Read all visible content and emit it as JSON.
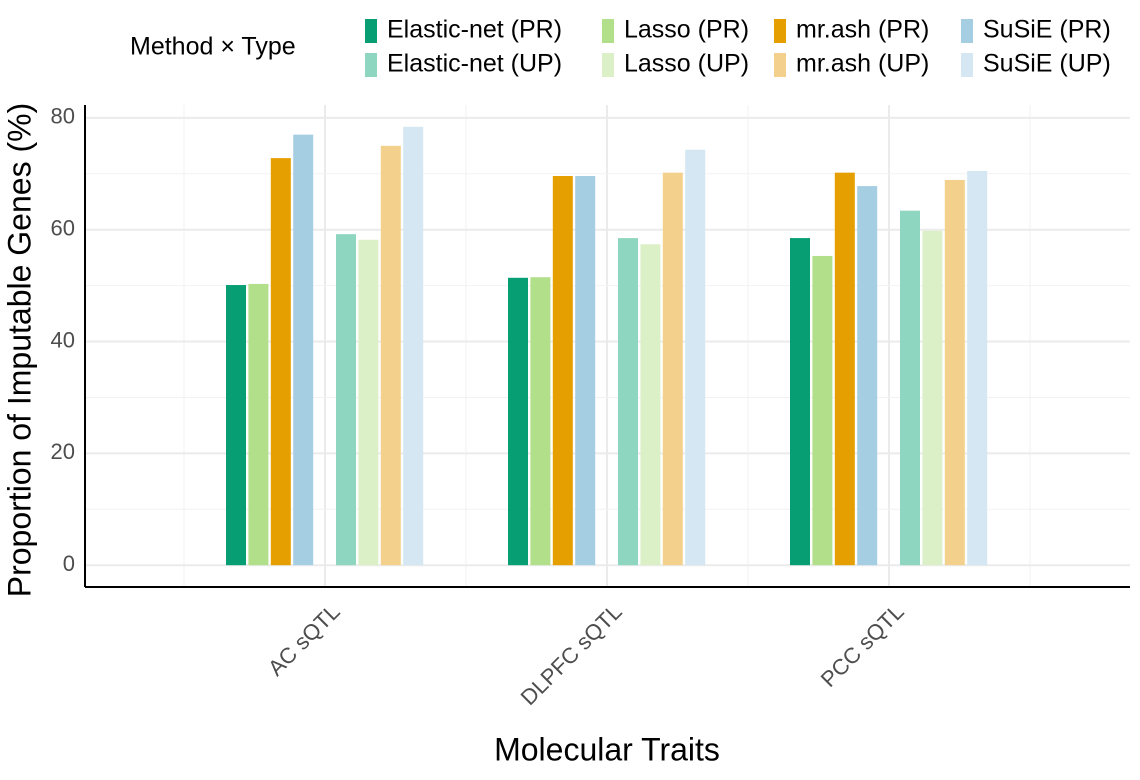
{
  "chart_data": {
    "type": "bar",
    "x_label": "Molecular Traits",
    "y_label": "Proportion of Imputable Genes (%)",
    "legend_title": "Method × Type",
    "categories": [
      "AC sQTL",
      "DLPFC sQTL",
      "PCC sQTL"
    ],
    "series": [
      {
        "name": "Elastic-net (PR)",
        "color": "#079e73",
        "values": [
          50.1,
          51.4,
          58.5
        ]
      },
      {
        "name": "Lasso (PR)",
        "color": "#b2df8a",
        "values": [
          50.3,
          51.5,
          55.3
        ]
      },
      {
        "name": "mr.ash (PR)",
        "color": "#e69f00",
        "values": [
          72.8,
          69.6,
          70.2
        ]
      },
      {
        "name": "SuSiE (PR)",
        "color": "#a6cee3",
        "values": [
          77.0,
          69.6,
          67.8
        ]
      },
      {
        "name": "Elastic-net (UP)",
        "color": "#8fd6c0",
        "values": [
          59.2,
          58.5,
          63.4
        ]
      },
      {
        "name": "Lasso (UP)",
        "color": "#dcf0c8",
        "values": [
          58.2,
          57.4,
          59.8
        ]
      },
      {
        "name": "mr.ash (UP)",
        "color": "#f3d18c",
        "values": [
          75.0,
          70.2,
          68.9
        ]
      },
      {
        "name": "SuSiE (UP)",
        "color": "#d4e7f2",
        "values": [
          78.4,
          74.3,
          70.5
        ]
      }
    ],
    "ylim": [
      -3.9,
      82.3
    ],
    "yticks": [
      0,
      20,
      40,
      60,
      80
    ],
    "grid": true
  }
}
